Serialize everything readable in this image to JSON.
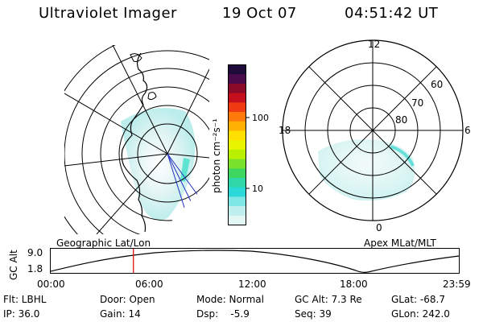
{
  "header": {
    "instrument": "Ultraviolet Imager",
    "date": "19 Oct 07",
    "time": "04:51:42 UT"
  },
  "colorbar": {
    "unit_label": "photon cm⁻²s⁻¹",
    "ticks": [
      "100",
      "10"
    ],
    "colors": [
      "#1e0b3a",
      "#4a0b4d",
      "#8a0a2a",
      "#c40f1c",
      "#f03a12",
      "#ff7a0a",
      "#ffb000",
      "#ffe000",
      "#e8f400",
      "#b8f000",
      "#7ae22a",
      "#3fd660",
      "#2ed6a8",
      "#2ad8d8",
      "#7fe6e6",
      "#bff0ee",
      "#e2f6f4"
    ]
  },
  "geo_plot": {
    "caption": "Geographic Lat/Lon"
  },
  "apex_plot": {
    "caption": "Apex MLat/MLT",
    "mlt_labels": [
      "12",
      "18",
      "6",
      "0"
    ],
    "lat_labels": [
      "60",
      "70",
      "80"
    ]
  },
  "altitude_panel": {
    "axis_label": "GC Alt",
    "y_ticks": [
      "9.0",
      "1.8"
    ],
    "x_ticks": [
      "00:00",
      "06:00",
      "12:00",
      "18:00",
      "23:59"
    ],
    "current_time_fraction": 0.2026
  },
  "info": {
    "flt": "Flt: LBHL",
    "ip": "IP: 36.0",
    "door": "Door: Open",
    "gain": "Gain: 14",
    "mode": "Mode: Normal",
    "dsp": "Dsp:    -5.9",
    "gc_alt": "GC Alt: 7.3 Re",
    "seq": "Seq: 39",
    "glat": "GLat: -68.7",
    "glon": "GLon: 242.0"
  }
}
